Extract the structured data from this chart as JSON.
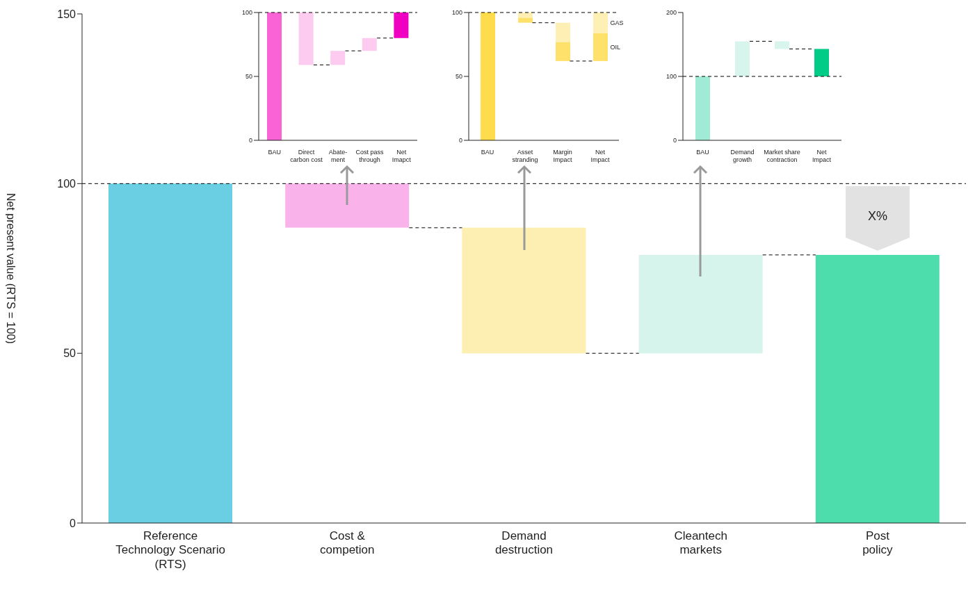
{
  "chart_data": [
    {
      "type": "bar",
      "ylabel": "Net present value (RTS = 100)",
      "categories": [
        "Reference\nTechnology Scenario\n(RTS)",
        "Cost &\ncompetion",
        "Demand\ndestruction",
        "Cleantech\nmarkets",
        "Post\npolicy"
      ],
      "values": [
        100,
        13,
        37,
        29,
        79
      ],
      "base": [
        0,
        87,
        50,
        50,
        0
      ],
      "colors": [
        "#6acfe2",
        "#fab3ea",
        "#fdefb1",
        "#d7f4ec",
        "#4ddcac"
      ],
      "ylim": [
        0,
        150
      ],
      "yticks": [
        0,
        50,
        100,
        150
      ],
      "ref_lines": [
        {
          "axis": "y",
          "value": 100,
          "line_style": "dashed",
          "color": "#000000"
        }
      ],
      "annotations": [
        "X%"
      ]
    },
    {
      "type": "bar",
      "categories": [
        "BAU",
        "Direct\ncarbon cost",
        "Abate-\nment",
        "Cost pass\nthrough",
        "Net\nImapct"
      ],
      "values": [
        100,
        41,
        11,
        10,
        20
      ],
      "base": [
        0,
        59,
        59,
        70,
        80
      ],
      "colors": [
        "#f963d6",
        "#fccbef",
        "#fccbef",
        "#fccbef",
        "#f000c0"
      ],
      "ylim": [
        0,
        100
      ],
      "yticks": [
        0,
        50,
        100
      ],
      "ref_lines": [
        {
          "axis": "y",
          "value": 100,
          "line_style": "dashed",
          "color": "#000000"
        }
      ]
    },
    {
      "type": "bar",
      "categories": [
        "BAU",
        "Asset\nstranding",
        "Margin\nImpact",
        "Net\nImpact"
      ],
      "series": [
        {
          "color": "#fedc4c",
          "values": [
            100,
            null,
            null,
            null
          ],
          "base": [
            0,
            null,
            null,
            null
          ]
        },
        {
          "name": "OIL",
          "color": "#fee16a",
          "values": [
            null,
            4,
            15,
            22
          ],
          "base": [
            null,
            92,
            62,
            62
          ]
        },
        {
          "name": "GAS",
          "color": "#fef0b4",
          "values": [
            null,
            4,
            15,
            16
          ],
          "base": [
            null,
            96,
            77,
            84
          ]
        }
      ],
      "ylim": [
        0,
        100
      ],
      "yticks": [
        0,
        50,
        100
      ],
      "ref_lines": [
        {
          "axis": "y",
          "value": 100,
          "line_style": "dashed",
          "color": "#000000"
        }
      ]
    },
    {
      "type": "bar",
      "categories": [
        "BAU",
        "Demand\ngrowth",
        "Market share\ncontraction",
        "Net\nImpact"
      ],
      "values": [
        100,
        55,
        12,
        43
      ],
      "base": [
        0,
        100,
        143,
        100
      ],
      "colors": [
        "#a0ead6",
        "#d8f5ed",
        "#d8f5ed",
        "#00cc88"
      ],
      "ylim": [
        0,
        200
      ],
      "yticks": [
        0,
        100,
        200
      ],
      "ref_lines": [
        {
          "axis": "y",
          "value": 100,
          "line_style": "dashed",
          "color": "#000000"
        }
      ]
    }
  ]
}
